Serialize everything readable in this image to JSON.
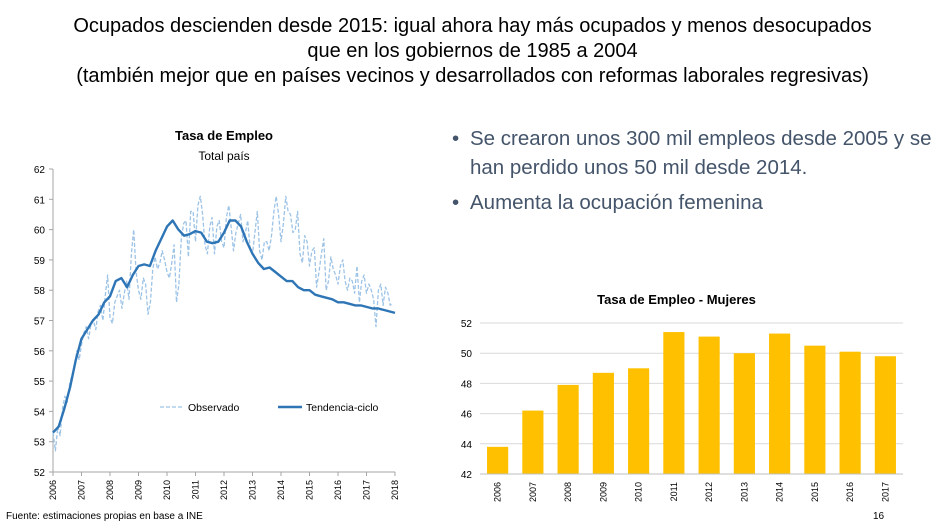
{
  "slide": {
    "title_lines": [
      "Ocupados descienden desde 2015:  igual ahora hay más ocupados y menos desocupados",
      "que en los gobiernos de 1985 a 2004",
      "(también mejor que en países vecinos y desarrollados con reformas laborales regresivas)"
    ],
    "bullets": [
      "Se crearon unos 300 mil empleos desde 2005 y se han perdido unos 50 mil desde 2014.",
      "Aumenta la ocupación femenina"
    ],
    "footer": "Fuente: estimaciones propias en base a  INE",
    "page_number": "16"
  },
  "chart_data": [
    {
      "type": "line",
      "title": "Tasa de Empleo",
      "subtitle": "Total país",
      "xlabel": "",
      "ylabel": "",
      "ylim": [
        52,
        62
      ],
      "yticks": [
        52,
        53,
        54,
        55,
        56,
        57,
        58,
        59,
        60,
        61,
        62
      ],
      "xlim": [
        2006,
        2018
      ],
      "xticks": [
        "2006",
        "2007",
        "2008",
        "2009",
        "2010",
        "2011",
        "2012",
        "2013",
        "2014",
        "2015",
        "2016",
        "2017",
        "2018"
      ],
      "grid": false,
      "legend_position": "bottom-center",
      "series": [
        {
          "name": "Observado",
          "style": "dashed",
          "color": "#9DC3E6",
          "x": [
            2006.0,
            2006.083,
            2006.167,
            2006.25,
            2006.333,
            2006.417,
            2006.5,
            2006.583,
            2006.667,
            2006.75,
            2006.833,
            2006.917,
            2007.0,
            2007.083,
            2007.167,
            2007.25,
            2007.333,
            2007.417,
            2007.5,
            2007.583,
            2007.667,
            2007.75,
            2007.833,
            2007.917,
            2008.0,
            2008.083,
            2008.167,
            2008.25,
            2008.333,
            2008.417,
            2008.5,
            2008.583,
            2008.667,
            2008.75,
            2008.833,
            2008.917,
            2009.0,
            2009.083,
            2009.167,
            2009.25,
            2009.333,
            2009.417,
            2009.5,
            2009.583,
            2009.667,
            2009.75,
            2009.833,
            2009.917,
            2010.0,
            2010.083,
            2010.167,
            2010.25,
            2010.333,
            2010.417,
            2010.5,
            2010.583,
            2010.667,
            2010.75,
            2010.833,
            2010.917,
            2011.0,
            2011.083,
            2011.167,
            2011.25,
            2011.333,
            2011.417,
            2011.5,
            2011.583,
            2011.667,
            2011.75,
            2011.833,
            2011.917,
            2012.0,
            2012.083,
            2012.167,
            2012.25,
            2012.333,
            2012.417,
            2012.5,
            2012.583,
            2012.667,
            2012.75,
            2012.833,
            2012.917,
            2013.0,
            2013.083,
            2013.167,
            2013.25,
            2013.333,
            2013.417,
            2013.5,
            2013.583,
            2013.667,
            2013.75,
            2013.833,
            2013.917,
            2014.0,
            2014.083,
            2014.167,
            2014.25,
            2014.333,
            2014.417,
            2014.5,
            2014.583,
            2014.667,
            2014.75,
            2014.833,
            2014.917,
            2015.0,
            2015.083,
            2015.167,
            2015.25,
            2015.333,
            2015.417,
            2015.5,
            2015.583,
            2015.667,
            2015.75,
            2015.833,
            2015.917,
            2016.0,
            2016.083,
            2016.167,
            2016.25,
            2016.333,
            2016.417,
            2016.5,
            2016.583,
            2016.667,
            2016.75,
            2016.833,
            2016.917,
            2017.0,
            2017.083,
            2017.167,
            2017.25,
            2017.333,
            2017.417,
            2017.5,
            2017.583,
            2017.667,
            2017.75,
            2017.833,
            2017.917
          ],
          "values": [
            53.3,
            52.7,
            53.5,
            53.2,
            54.1,
            54.5,
            54.3,
            54.9,
            55.2,
            55.4,
            56.0,
            55.7,
            56.2,
            56.6,
            56.8,
            56.4,
            56.9,
            57.0,
            56.7,
            57.3,
            57.5,
            57.0,
            57.8,
            58.5,
            57.1,
            56.9,
            57.6,
            57.8,
            58.0,
            57.4,
            57.9,
            58.3,
            57.7,
            59.2,
            60.0,
            58.6,
            58.0,
            57.7,
            58.4,
            58.2,
            57.2,
            57.6,
            58.7,
            59.1,
            58.7,
            58.9,
            59.3,
            59.0,
            58.6,
            58.4,
            58.9,
            59.5,
            57.6,
            58.2,
            59.7,
            60.2,
            60.3,
            59.1,
            60.6,
            60.6,
            59.6,
            60.8,
            61.1,
            60.5,
            59.5,
            59.2,
            60.1,
            60.4,
            59.2,
            60.1,
            60.3,
            59.6,
            59.4,
            60.4,
            60.8,
            60.1,
            59.3,
            59.9,
            60.2,
            60.5,
            59.6,
            59.9,
            60.3,
            59.4,
            59.2,
            59.9,
            60.6,
            59.3,
            59.0,
            59.6,
            59.6,
            59.3,
            59.8,
            60.6,
            61.1,
            60.5,
            59.6,
            60.2,
            61.1,
            60.6,
            60.5,
            59.9,
            60.0,
            60.6,
            59.2,
            58.9,
            59.8,
            59.6,
            58.8,
            59.3,
            59.4,
            58.1,
            58.6,
            59.2,
            59.7,
            58.0,
            58.3,
            59.1,
            58.7,
            58.5,
            58.2,
            58.8,
            59.0,
            58.3,
            58.0,
            58.4,
            58.3,
            57.9,
            58.8,
            57.6,
            58.3,
            58.5,
            57.9,
            58.2,
            58.0,
            57.7,
            56.8,
            58.0,
            58.2,
            57.5,
            58.1,
            57.9,
            57.5,
            57.6
          ]
        },
        {
          "name": "Tendencia-ciclo",
          "style": "solid",
          "color": "#2E75B6",
          "x": [
            2006.0,
            2006.2,
            2006.4,
            2006.6,
            2006.8,
            2007.0,
            2007.2,
            2007.4,
            2007.6,
            2007.8,
            2008.0,
            2008.2,
            2008.4,
            2008.6,
            2008.8,
            2009.0,
            2009.2,
            2009.4,
            2009.6,
            2009.8,
            2010.0,
            2010.2,
            2010.4,
            2010.6,
            2010.8,
            2011.0,
            2011.2,
            2011.4,
            2011.6,
            2011.8,
            2012.0,
            2012.2,
            2012.4,
            2012.6,
            2012.8,
            2013.0,
            2013.2,
            2013.4,
            2013.6,
            2013.8,
            2014.0,
            2014.2,
            2014.4,
            2014.6,
            2014.8,
            2015.0,
            2015.2,
            2015.4,
            2015.6,
            2015.8,
            2016.0,
            2016.2,
            2016.4,
            2016.6,
            2016.8,
            2017.0,
            2017.2,
            2017.4,
            2017.6,
            2017.8,
            2018.0
          ],
          "values": [
            53.3,
            53.5,
            54.1,
            54.8,
            55.7,
            56.4,
            56.7,
            57.0,
            57.2,
            57.6,
            57.8,
            58.3,
            58.4,
            58.1,
            58.5,
            58.8,
            58.85,
            58.8,
            59.3,
            59.7,
            60.1,
            60.3,
            60.0,
            59.8,
            59.85,
            59.95,
            59.9,
            59.6,
            59.55,
            59.6,
            59.9,
            60.3,
            60.3,
            60.1,
            59.6,
            59.2,
            58.9,
            58.7,
            58.75,
            58.6,
            58.45,
            58.3,
            58.3,
            58.1,
            58.0,
            58.0,
            57.85,
            57.8,
            57.75,
            57.7,
            57.6,
            57.6,
            57.55,
            57.5,
            57.5,
            57.45,
            57.4,
            57.4,
            57.35,
            57.3,
            57.25
          ]
        }
      ]
    },
    {
      "type": "bar",
      "title": "Tasa de Empleo - Mujeres",
      "xlabel": "",
      "ylabel": "",
      "ylim": [
        42,
        52
      ],
      "yticks": [
        42,
        44,
        46,
        48,
        50,
        52
      ],
      "grid": true,
      "color": "#FFC000",
      "categories": [
        "2006",
        "2007",
        "2008",
        "2009",
        "2010",
        "2011",
        "2012",
        "2013",
        "2014",
        "2015",
        "2016",
        "2017"
      ],
      "values": [
        43.8,
        46.2,
        47.9,
        48.7,
        49.0,
        51.4,
        51.1,
        50.0,
        51.3,
        50.5,
        50.1,
        49.8
      ]
    }
  ]
}
